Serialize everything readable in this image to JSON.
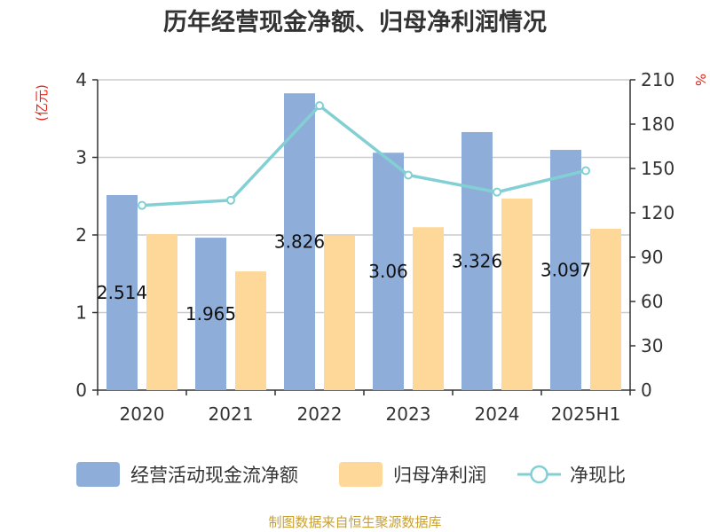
{
  "chart_data": {
    "type": "bar",
    "title": "历年经营现金净额、归母净利润情况",
    "categories": [
      "2020",
      "2021",
      "2022",
      "2023",
      "2024",
      "2025H1"
    ],
    "y_left": {
      "unit": "(亿元)",
      "range": [
        0,
        4
      ],
      "ticks": [
        "0",
        "1",
        "2",
        "3",
        "4"
      ]
    },
    "y_right": {
      "unit": "%",
      "range": [
        0,
        210
      ],
      "ticks": [
        "0",
        "30",
        "60",
        "90",
        "120",
        "150",
        "180",
        "210"
      ]
    },
    "series": [
      {
        "name": "经营活动现金流净额",
        "type": "bar",
        "axis": "left",
        "color": "#8eadd9",
        "values": [
          2.514,
          1.965,
          3.826,
          3.06,
          3.326,
          3.097
        ],
        "labels": [
          "2.514",
          "1.965",
          "3.826",
          "3.06",
          "3.326",
          "3.097"
        ]
      },
      {
        "name": "归母净利润",
        "type": "bar",
        "axis": "left",
        "color": "#fdd898",
        "values": [
          2.01,
          1.53,
          1.99,
          2.1,
          2.47,
          2.08
        ]
      },
      {
        "name": "净现比",
        "type": "line",
        "axis": "right",
        "color": "#82d0d4",
        "values": [
          125,
          128.5,
          192.5,
          145.5,
          134,
          148.5
        ]
      }
    ],
    "legend_position": "bottom",
    "grid": true,
    "source": "制图数据来自恒生聚源数据库"
  }
}
